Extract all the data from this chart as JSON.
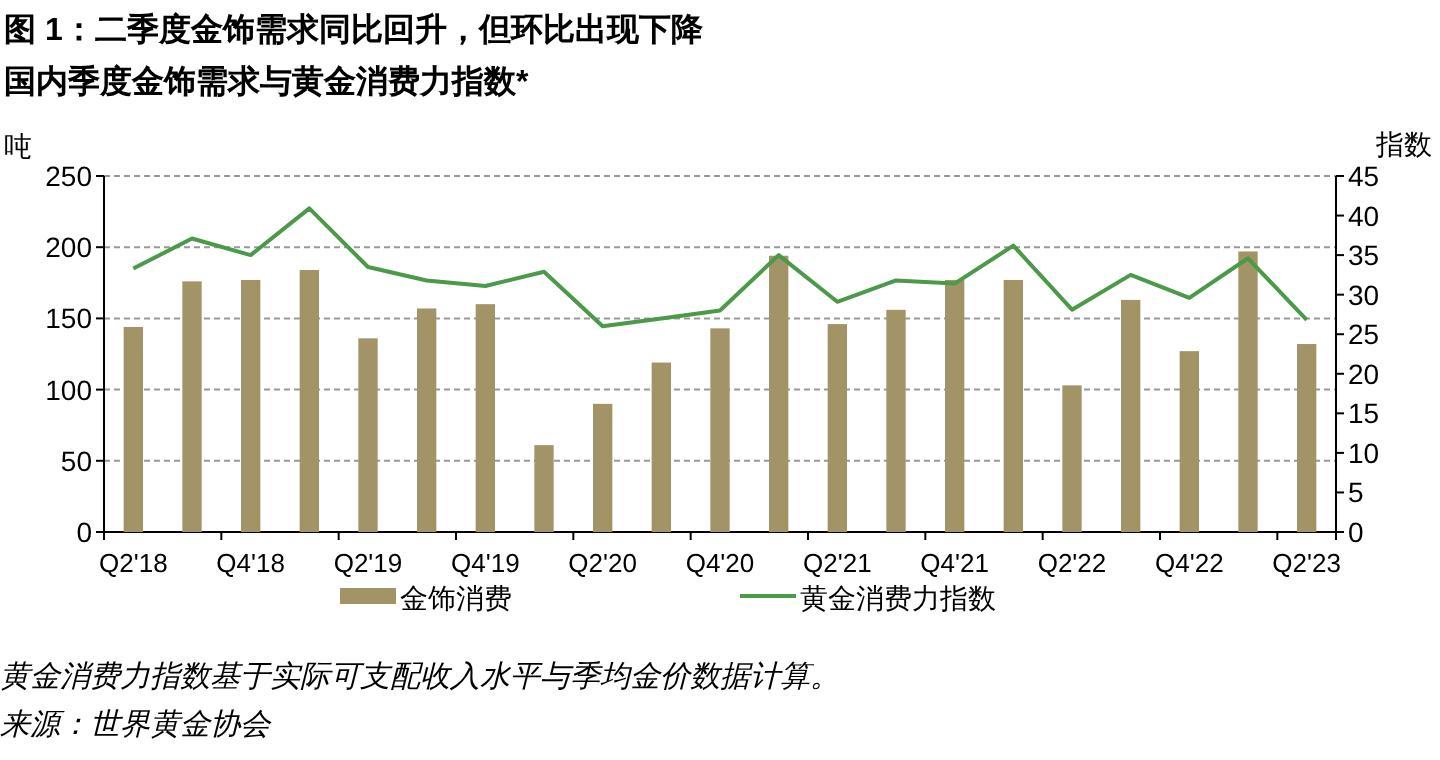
{
  "chart_data": {
    "type": "bar",
    "title": "图 1：二季度金饰需求同比回升，但环比出现下降",
    "subtitle": "国内季度金饰需求与黄金消费力指数*",
    "ylabel": "吨",
    "y2label": "指数",
    "categories": [
      "Q2'18",
      null,
      "Q4'18",
      null,
      "Q2'19",
      null,
      "Q4'19",
      null,
      "Q2'20",
      null,
      "Q4'20",
      null,
      "Q2'21",
      null,
      "Q4'21",
      null,
      "Q2'22",
      null,
      "Q4'22",
      null,
      "Q2'23"
    ],
    "series": [
      {
        "name": "金饰消费",
        "color": "#a39468",
        "values": [
          144,
          176,
          177,
          184,
          136,
          157,
          160,
          61,
          90,
          119,
          143,
          194,
          146,
          156,
          177,
          177,
          103,
          163,
          127,
          197,
          132
        ]
      },
      {
        "name": "黄金消费力指数",
        "type": "line",
        "axis": "y2",
        "color": "#4a9a4a",
        "values": [
          33.3,
          37.1,
          35.0,
          40.9,
          33.5,
          31.8,
          31.1,
          32.9,
          26.0,
          27.0,
          28.0,
          35.0,
          29.1,
          31.8,
          31.4,
          36.2,
          28.1,
          32.5,
          29.6,
          34.6,
          26.8
        ]
      }
    ],
    "ylim": [
      0,
      250
    ],
    "yticks": [
      0,
      50,
      100,
      150,
      200,
      250
    ],
    "y2lim": [
      0,
      45
    ],
    "y2ticks": [
      0,
      5,
      10,
      15,
      20,
      25,
      30,
      35,
      40,
      45
    ],
    "grid": "y",
    "legend": "bottom",
    "annotations": [
      "黄金消费力指数基于实际可支配收入水平与季均金价数据计算。",
      "来源：世界黄金协会"
    ]
  }
}
